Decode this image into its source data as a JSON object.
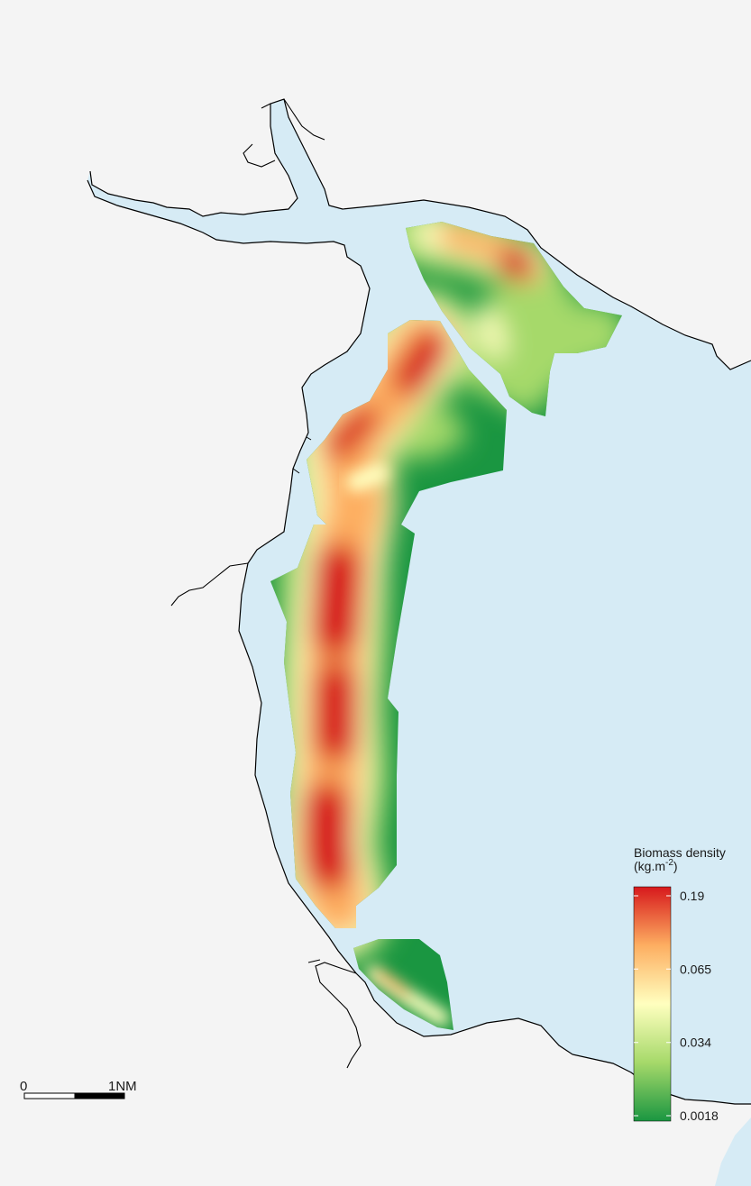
{
  "legend": {
    "title": "Biomass density",
    "unit_prefix": "(kg.m",
    "unit_exponent": "-2",
    "unit_suffix": ")",
    "ticks": [
      {
        "label": "0.19",
        "fraction": 1.0
      },
      {
        "label": "0.065",
        "fraction": 0.667
      },
      {
        "label": "0.034",
        "fraction": 0.333
      },
      {
        "label": "0.0018",
        "fraction": 0.0
      }
    ],
    "colors": [
      "#1a9641",
      "#a6d96a",
      "#ffffbf",
      "#fdae61",
      "#d7191c"
    ]
  },
  "scale_bar": {
    "start_label": "0",
    "end_label": "1NM"
  },
  "colors": {
    "land": "#f4f4f4",
    "water": "#d6ebf5",
    "coastline": "#000000"
  }
}
